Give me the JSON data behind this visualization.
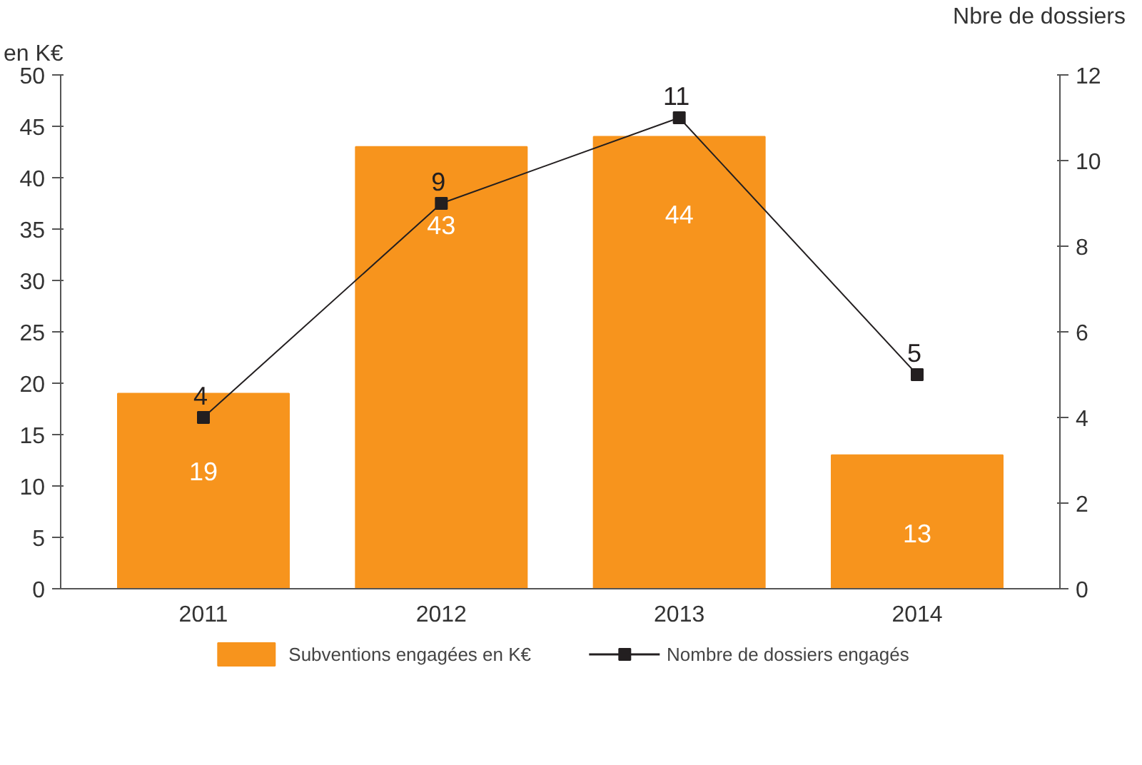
{
  "chart_data": {
    "type": "bar",
    "ylabel": "en K€",
    "y2label": "Nbre de dossiers",
    "categories": [
      "2011",
      "2012",
      "2013",
      "2014"
    ],
    "series": [
      {
        "name": "Subventions engagées en K€",
        "color": "#f7941d",
        "values": [
          19,
          43,
          44,
          13
        ]
      },
      {
        "name": "Nombre de dossiers engagés",
        "type": "line",
        "axis": "y2",
        "color": "#231f20",
        "values": [
          4,
          9,
          11,
          5
        ]
      }
    ],
    "ylim": [
      0,
      50
    ],
    "yticks": [
      0,
      5,
      10,
      15,
      20,
      25,
      30,
      35,
      40,
      45,
      50
    ],
    "y2lim": [
      0,
      12
    ],
    "y2ticks": [
      0,
      2,
      4,
      6,
      8,
      10,
      12
    ],
    "data_labels": true,
    "grid": false,
    "legend": "bottom",
    "marker": "square",
    "line_style": "solid"
  }
}
